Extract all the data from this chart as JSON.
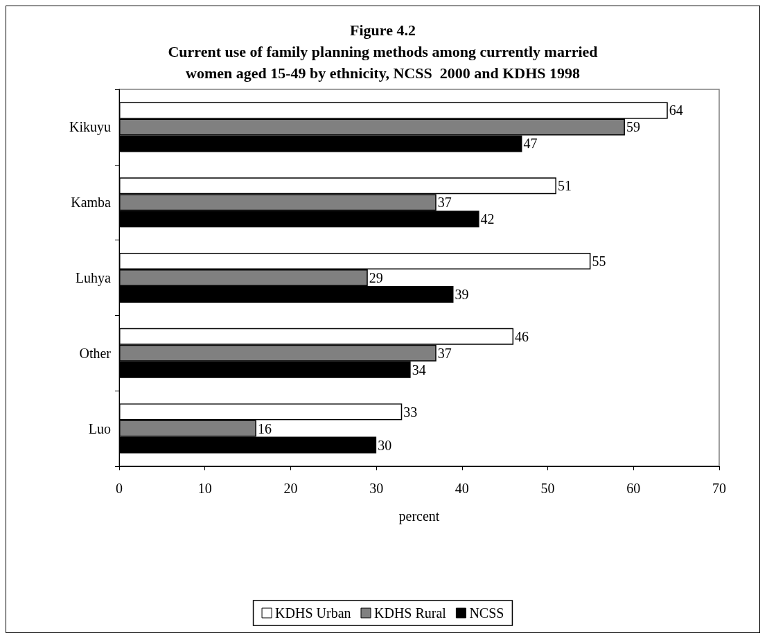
{
  "chart_data": {
    "type": "bar",
    "orientation": "horizontal",
    "title": "Figure 4.2\nCurrent use of family planning methods among currently married\nwomen aged 15-49 by ethnicity, NCSS  2000 and KDHS 1998",
    "xlabel": "percent",
    "categories": [
      "Kikuyu",
      "Kamba",
      "Luhya",
      "Other",
      "Luo"
    ],
    "series": [
      {
        "name": "KDHS Urban",
        "color": "#ffffff",
        "values": [
          64,
          51,
          55,
          46,
          33
        ]
      },
      {
        "name": "KDHS Rural",
        "color": "#808080",
        "values": [
          59,
          37,
          29,
          37,
          16
        ]
      },
      {
        "name": "NCSS",
        "color": "#000000",
        "values": [
          47,
          42,
          39,
          34,
          30
        ]
      }
    ],
    "xlim": [
      0,
      70
    ],
    "xticks": [
      0,
      10,
      20,
      30,
      40,
      50,
      60,
      70
    ],
    "grid": false,
    "legend": "bottom",
    "data_labels": true
  }
}
